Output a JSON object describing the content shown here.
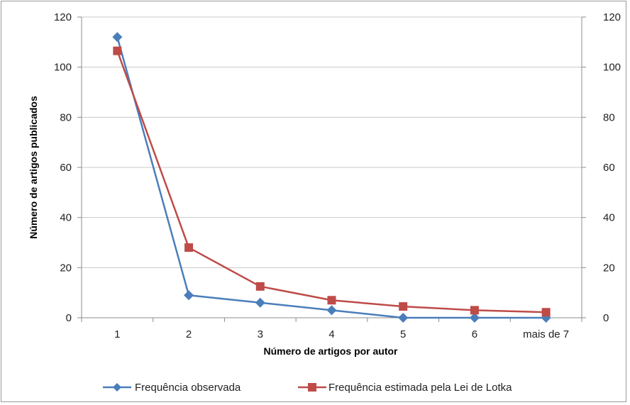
{
  "chart_data": {
    "type": "line",
    "title": "",
    "xlabel": "Número de artigos por autor",
    "ylabel": "Número de artigos publicados",
    "categories": [
      "1",
      "2",
      "3",
      "4",
      "5",
      "6",
      "mais de 7"
    ],
    "ylim": [
      0,
      120
    ],
    "y_ticks": [
      "0",
      "20",
      "40",
      "60",
      "80",
      "100",
      "120"
    ],
    "y2_ticks": [
      "0",
      "20",
      "40",
      "60",
      "80",
      "100",
      "120"
    ],
    "grid": true,
    "legend_position": "bottom",
    "series": [
      {
        "name": "Frequência observada",
        "values": [
          112,
          9,
          6,
          3,
          0,
          0,
          0
        ],
        "color": "#4a7ebb",
        "marker": "diamond"
      },
      {
        "name": "Frequência estimada pela Lei de Lotka",
        "values": [
          106.5,
          28,
          12.5,
          7,
          4.5,
          3,
          2.2
        ],
        "color": "#be4b48",
        "marker": "square"
      }
    ]
  }
}
